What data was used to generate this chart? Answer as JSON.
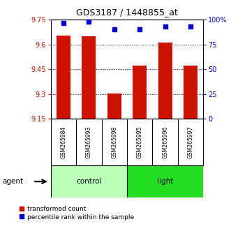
{
  "title": "GDS3187 / 1448855_at",
  "samples": [
    "GSM265984",
    "GSM265993",
    "GSM265998",
    "GSM265995",
    "GSM265996",
    "GSM265997"
  ],
  "red_values": [
    9.655,
    9.65,
    9.302,
    9.472,
    9.61,
    9.472
  ],
  "blue_values": [
    97,
    98,
    90,
    90,
    93,
    93
  ],
  "ylim_left": [
    9.15,
    9.75
  ],
  "ylim_right": [
    0,
    100
  ],
  "yticks_left": [
    9.15,
    9.3,
    9.45,
    9.6,
    9.75
  ],
  "yticks_right": [
    0,
    25,
    50,
    75,
    100
  ],
  "ytick_labels_right": [
    "0",
    "25",
    "50",
    "75",
    "100%"
  ],
  "groups": [
    {
      "label": "control",
      "start": 0,
      "end": 3,
      "color": "#bbffbb"
    },
    {
      "label": "light",
      "start": 3,
      "end": 6,
      "color": "#22dd22"
    }
  ],
  "group_row_color": "#cccccc",
  "bar_color": "#cc1100",
  "dot_color": "#0000cc",
  "bar_width": 0.55,
  "agent_label": "agent",
  "legend_red": "transformed count",
  "legend_blue": "percentile rank within the sample",
  "background_color": "#ffffff",
  "left_tick_color": "#cc1100",
  "right_tick_color": "#0000cc"
}
